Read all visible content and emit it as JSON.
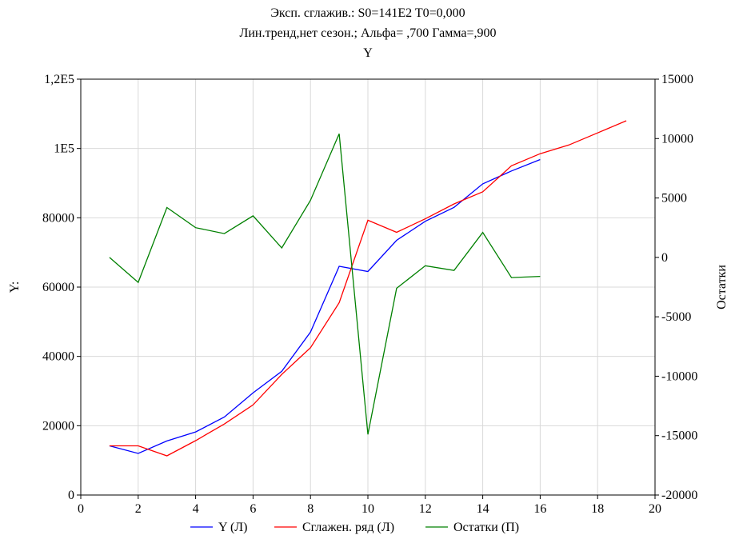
{
  "chart_data": {
    "type": "line",
    "title_lines": [
      "Эксп. сглажив.:  S0=141E2 T0=0,000",
      "Лин.тренд,нет сезон.; Альфа=  ,700 Гамма=,900",
      "Y"
    ],
    "xlabel": "",
    "ylabel_left": "Y:",
    "ylabel_right": "Остатки",
    "xlim": [
      0,
      20
    ],
    "ylim_left": [
      0,
      120000
    ],
    "ylim_right": [
      -20000,
      15000
    ],
    "x_ticks": [
      "0",
      "2",
      "4",
      "6",
      "8",
      "10",
      "12",
      "14",
      "16",
      "18",
      "20"
    ],
    "x_tick_values": [
      0,
      2,
      4,
      6,
      8,
      10,
      12,
      14,
      16,
      18,
      20
    ],
    "y_left_ticks": [
      "0",
      "20000",
      "40000",
      "60000",
      "80000",
      "1E5",
      "1,2E5"
    ],
    "y_left_tick_values": [
      0,
      20000,
      40000,
      60000,
      80000,
      100000,
      120000
    ],
    "y_right_ticks": [
      "-20000",
      "-15000",
      "-10000",
      "-5000",
      "0",
      "5000",
      "10000",
      "15000"
    ],
    "y_right_tick_values": [
      -20000,
      -15000,
      -10000,
      -5000,
      0,
      5000,
      10000,
      15000
    ],
    "grid": true,
    "legend_position": "bottom",
    "series": [
      {
        "name": "Y (Л)",
        "axis": "left",
        "color": "#0000ff",
        "x": [
          1,
          2,
          3,
          4,
          5,
          6,
          7,
          8,
          9,
          10,
          11,
          12,
          13,
          14,
          15,
          16
        ],
        "y": [
          14200,
          12000,
          15600,
          18200,
          22500,
          29500,
          35700,
          47000,
          66000,
          64500,
          73500,
          79000,
          83000,
          89800,
          93500,
          96800
        ]
      },
      {
        "name": "Сглажен.  ряд (Л)",
        "axis": "left",
        "color": "#ff0000",
        "x": [
          1,
          2,
          3,
          4,
          5,
          6,
          7,
          8,
          9,
          10,
          11,
          12,
          13,
          14,
          15,
          16,
          17,
          18,
          19
        ],
        "y": [
          14200,
          14200,
          11300,
          15700,
          20500,
          26000,
          34800,
          42500,
          55500,
          79300,
          75800,
          79700,
          84000,
          87500,
          95000,
          98500,
          101000,
          104500,
          108000
        ]
      },
      {
        "name": "Остатки (П)",
        "axis": "right",
        "color": "#008000",
        "x": [
          1,
          2,
          3,
          4,
          5,
          6,
          7,
          8,
          9,
          10,
          11,
          12,
          13,
          14,
          15,
          16
        ],
        "y": [
          0,
          -2100,
          4200,
          2500,
          2000,
          3500,
          800,
          4800,
          10400,
          -14900,
          -2600,
          -700,
          -1100,
          2100,
          -1700,
          -1600
        ]
      }
    ]
  }
}
